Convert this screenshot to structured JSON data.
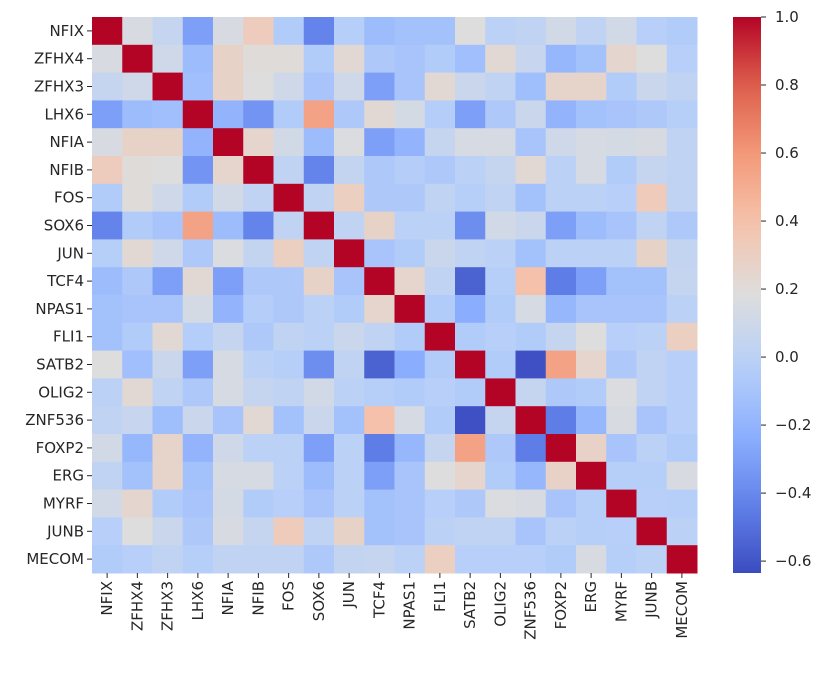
{
  "chart_data": {
    "type": "heatmap",
    "title": "",
    "xlabel": "",
    "ylabel": "",
    "colormap": "coolwarm",
    "vmin": -0.635,
    "vmax": 1.0,
    "colorbar_ticks": [
      1.0,
      0.8,
      0.6,
      0.4,
      0.2,
      0.0,
      -0.2,
      -0.4,
      -0.6
    ],
    "colorbar_tick_labels": [
      "1.0",
      "0.8",
      "0.6",
      "0.4",
      "0.2",
      "0.0",
      "−0.2",
      "−0.4",
      "−0.6"
    ],
    "labels": [
      "NFIX",
      "ZFHX4",
      "ZFHX3",
      "LHX6",
      "NFIA",
      "NFIB",
      "FOS",
      "SOX6",
      "JUN",
      "TCF4",
      "NPAS1",
      "FLI1",
      "SATB2",
      "OLIG2",
      "ZNF536",
      "FOXP2",
      "ERG",
      "MYRF",
      "JUNB",
      "MECOM"
    ],
    "matrix": [
      [
        1.0,
        0.15,
        0.05,
        -0.3,
        0.15,
        0.32,
        -0.05,
        -0.42,
        -0.03,
        -0.15,
        -0.12,
        -0.12,
        0.18,
        0.0,
        0.02,
        0.12,
        0.02,
        0.12,
        -0.02,
        -0.05
      ],
      [
        0.15,
        1.0,
        0.1,
        -0.15,
        0.27,
        0.2,
        0.2,
        -0.05,
        0.22,
        -0.07,
        -0.1,
        -0.05,
        -0.13,
        0.22,
        0.06,
        -0.18,
        -0.12,
        0.24,
        0.18,
        -0.02
      ],
      [
        0.05,
        0.1,
        1.0,
        -0.13,
        0.27,
        0.18,
        0.1,
        -0.1,
        0.1,
        -0.3,
        -0.1,
        0.22,
        0.08,
        0.03,
        -0.14,
        0.26,
        0.26,
        -0.05,
        0.08,
        0.03
      ],
      [
        -0.3,
        -0.15,
        -0.13,
        1.0,
        -0.2,
        -0.35,
        -0.05,
        0.55,
        -0.07,
        0.22,
        0.13,
        -0.04,
        -0.3,
        -0.07,
        0.07,
        -0.2,
        -0.12,
        -0.1,
        -0.07,
        -0.03
      ],
      [
        0.15,
        0.27,
        0.27,
        -0.2,
        1.0,
        0.25,
        0.12,
        -0.15,
        0.17,
        -0.3,
        -0.2,
        0.05,
        0.14,
        0.14,
        -0.1,
        0.1,
        0.14,
        0.13,
        0.15,
        0.02
      ],
      [
        0.32,
        0.2,
        0.18,
        -0.35,
        0.25,
        1.0,
        0.02,
        -0.42,
        0.04,
        -0.07,
        -0.04,
        -0.07,
        0.0,
        0.05,
        0.22,
        0.0,
        0.14,
        -0.05,
        0.05,
        0.02
      ],
      [
        -0.05,
        0.2,
        0.1,
        -0.05,
        0.12,
        0.02,
        1.0,
        0.03,
        0.3,
        -0.07,
        -0.07,
        0.03,
        -0.03,
        0.02,
        -0.12,
        0.0,
        0.0,
        -0.02,
        0.33,
        0.03
      ],
      [
        -0.42,
        -0.05,
        -0.1,
        0.55,
        -0.15,
        -0.42,
        0.03,
        1.0,
        0.03,
        0.27,
        0.0,
        0.0,
        -0.38,
        0.12,
        0.08,
        -0.3,
        -0.15,
        -0.1,
        0.03,
        -0.07
      ],
      [
        -0.03,
        0.22,
        0.1,
        -0.07,
        0.17,
        0.04,
        0.3,
        0.03,
        1.0,
        -0.1,
        -0.05,
        0.08,
        0.03,
        0.0,
        -0.12,
        0.0,
        0.0,
        0.0,
        0.27,
        0.04
      ],
      [
        -0.15,
        -0.07,
        -0.3,
        0.22,
        -0.3,
        -0.07,
        -0.07,
        0.27,
        -0.1,
        1.0,
        0.25,
        0.03,
        -0.55,
        -0.03,
        0.4,
        -0.45,
        -0.3,
        -0.12,
        -0.12,
        0.05
      ],
      [
        -0.12,
        -0.1,
        -0.1,
        0.13,
        -0.2,
        -0.04,
        -0.07,
        0.0,
        -0.05,
        0.25,
        1.0,
        -0.05,
        -0.24,
        -0.05,
        0.14,
        -0.18,
        -0.1,
        -0.1,
        -0.1,
        0.0
      ],
      [
        -0.12,
        -0.05,
        0.22,
        -0.04,
        0.05,
        -0.07,
        0.03,
        0.0,
        0.08,
        0.03,
        -0.05,
        1.0,
        -0.05,
        -0.02,
        -0.05,
        0.05,
        0.18,
        -0.02,
        0.0,
        0.3
      ],
      [
        0.18,
        -0.13,
        0.08,
        -0.3,
        0.14,
        0.0,
        -0.03,
        -0.38,
        0.03,
        -0.55,
        -0.24,
        -0.05,
        1.0,
        -0.05,
        -0.62,
        0.55,
        0.25,
        -0.07,
        0.03,
        -0.02
      ],
      [
        0.0,
        0.22,
        0.03,
        -0.07,
        0.14,
        0.05,
        0.02,
        0.12,
        0.0,
        -0.03,
        -0.05,
        -0.02,
        -0.05,
        1.0,
        0.05,
        -0.07,
        -0.05,
        0.17,
        0.02,
        -0.02
      ],
      [
        0.02,
        0.06,
        -0.14,
        0.07,
        -0.1,
        0.22,
        -0.12,
        0.08,
        -0.12,
        0.4,
        0.14,
        -0.05,
        -0.62,
        0.05,
        1.0,
        -0.45,
        -0.18,
        0.15,
        -0.1,
        -0.02
      ],
      [
        0.12,
        -0.18,
        0.26,
        -0.2,
        0.1,
        0.0,
        0.0,
        -0.3,
        0.0,
        -0.45,
        -0.18,
        0.05,
        0.55,
        -0.07,
        -0.45,
        1.0,
        0.28,
        -0.1,
        0.0,
        -0.05
      ],
      [
        0.02,
        -0.12,
        0.26,
        -0.12,
        0.14,
        0.14,
        0.0,
        -0.15,
        0.0,
        -0.3,
        -0.1,
        0.18,
        0.25,
        -0.05,
        -0.18,
        0.28,
        1.0,
        -0.03,
        -0.03,
        0.15
      ],
      [
        0.12,
        0.24,
        -0.05,
        -0.1,
        0.13,
        -0.05,
        -0.02,
        -0.1,
        0.0,
        -0.12,
        -0.1,
        -0.02,
        -0.07,
        0.17,
        0.15,
        -0.1,
        -0.03,
        1.0,
        -0.02,
        -0.03
      ],
      [
        -0.02,
        0.18,
        0.08,
        -0.07,
        0.15,
        0.05,
        0.33,
        0.03,
        0.27,
        -0.12,
        -0.1,
        0.0,
        0.03,
        0.02,
        -0.1,
        0.0,
        -0.03,
        -0.02,
        1.0,
        0.0
      ],
      [
        -0.05,
        -0.02,
        0.03,
        -0.03,
        0.02,
        0.02,
        0.03,
        -0.07,
        0.04,
        0.05,
        0.0,
        0.3,
        -0.02,
        -0.02,
        -0.02,
        -0.05,
        0.15,
        -0.03,
        0.0,
        1.0
      ]
    ]
  }
}
